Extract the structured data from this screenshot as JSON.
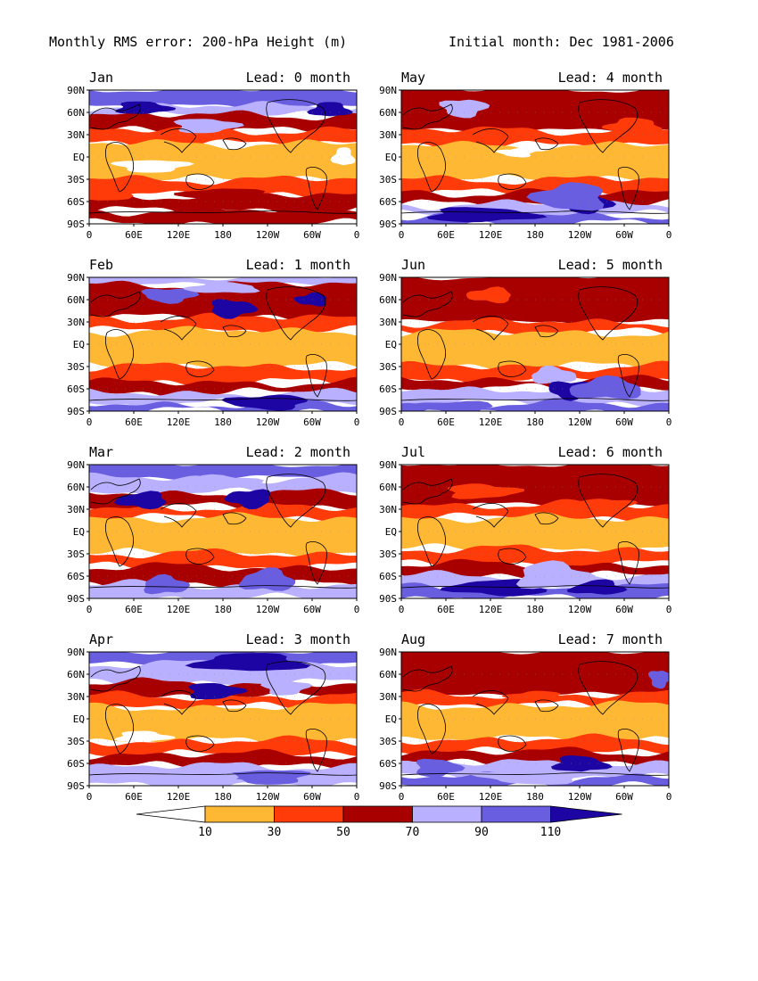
{
  "header": {
    "title": "Monthly RMS error: 200-hPa Height (m)",
    "initial": "Initial month: Dec 1981-2006"
  },
  "panels": [
    {
      "month": "Jan",
      "lead": "Lead: 0 month",
      "pattern": 0
    },
    {
      "month": "May",
      "lead": "Lead: 4 month",
      "pattern": 4
    },
    {
      "month": "Feb",
      "lead": "Lead: 1 month",
      "pattern": 1
    },
    {
      "month": "Jun",
      "lead": "Lead: 5 month",
      "pattern": 5
    },
    {
      "month": "Mar",
      "lead": "Lead: 2 month",
      "pattern": 2
    },
    {
      "month": "Jul",
      "lead": "Lead: 6 month",
      "pattern": 6
    },
    {
      "month": "Apr",
      "lead": "Lead: 3 month",
      "pattern": 3
    },
    {
      "month": "Aug",
      "lead": "Lead: 7 month",
      "pattern": 7
    }
  ],
  "lat_labels": [
    "90N",
    "60N",
    "30N",
    "EQ",
    "30S",
    "60S",
    "90S"
  ],
  "lon_labels": [
    "0",
    "60E",
    "120E",
    "180",
    "120W",
    "60W",
    "0"
  ],
  "colorbar": {
    "labels": [
      "10",
      "30",
      "50",
      "70",
      "90",
      "110"
    ],
    "colors": [
      "#ffffff",
      "#ffb833",
      "#ff3b0a",
      "#a80000",
      "#b9b1ff",
      "#6a5ee0",
      "#1d05a3"
    ]
  }
}
